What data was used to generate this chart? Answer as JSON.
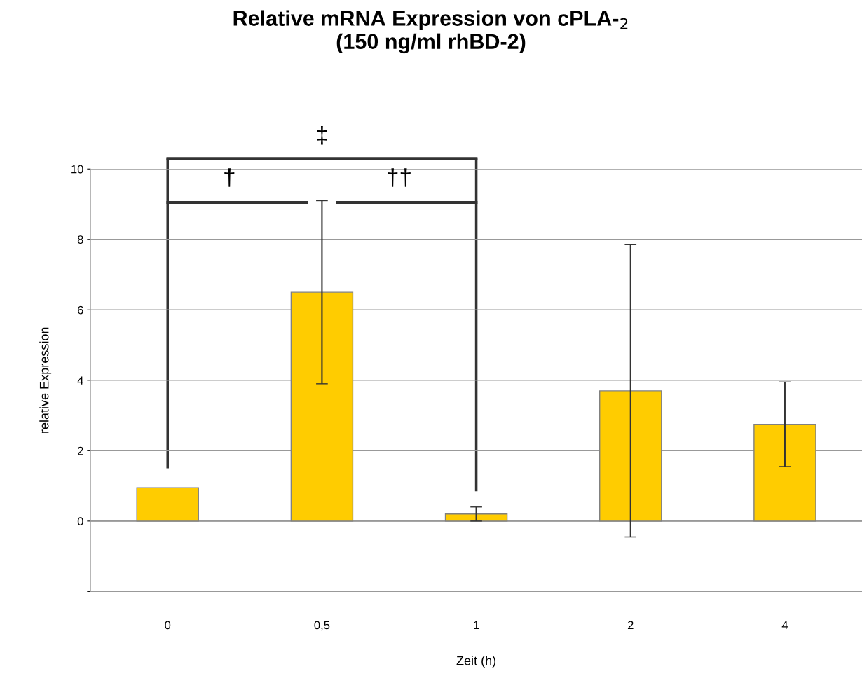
{
  "chart_data": {
    "type": "bar",
    "title": "Relative mRNA Expression von cPLA-$_{2}$\n(150 ng/ml rhBD-2)",
    "xlabel": "Zeit (h)",
    "ylabel": "relative Expression",
    "categories": [
      "0",
      "0,5",
      "1",
      "2",
      "4"
    ],
    "values": [
      0.95,
      6.5,
      0.2,
      3.7,
      2.75
    ],
    "color": "#ffcc00",
    "errors": [
      null,
      2.6,
      0.2,
      4.15,
      1.2
    ],
    "ylim": [
      -2,
      10
    ],
    "yticks": [
      {
        "value": -2,
        "label": null
      },
      0,
      2,
      4,
      6,
      8,
      10
    ],
    "grid": "y",
    "annotations": [
      "†",
      "††",
      "‡"
    ]
  }
}
